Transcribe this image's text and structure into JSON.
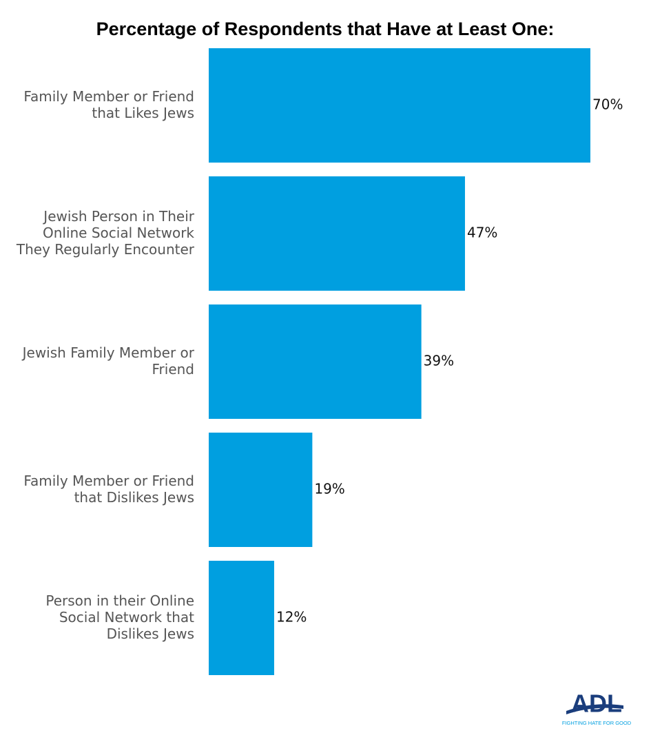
{
  "chart_data": {
    "type": "bar",
    "orientation": "horizontal",
    "title": "Percentage of Respondents that Have at Least One:",
    "categories": [
      [
        "Family Member or Friend",
        "that Likes Jews"
      ],
      [
        "Jewish Person in Their",
        "Online Social Network",
        "They Regularly Encounter"
      ],
      [
        "Jewish Family Member or",
        "Friend"
      ],
      [
        "Family Member or Friend",
        "that Dislikes Jews"
      ],
      [
        "Person in their Online",
        "Social Network that",
        "Dislikes Jews"
      ]
    ],
    "values": [
      70,
      47,
      39,
      19,
      12
    ],
    "value_labels": [
      "70%",
      "47%",
      "39%",
      "19%",
      "12%"
    ],
    "color": "#009fe0"
  },
  "logo": {
    "name": "ADL",
    "tagline": "FIGHTING HATE FOR GOOD"
  }
}
